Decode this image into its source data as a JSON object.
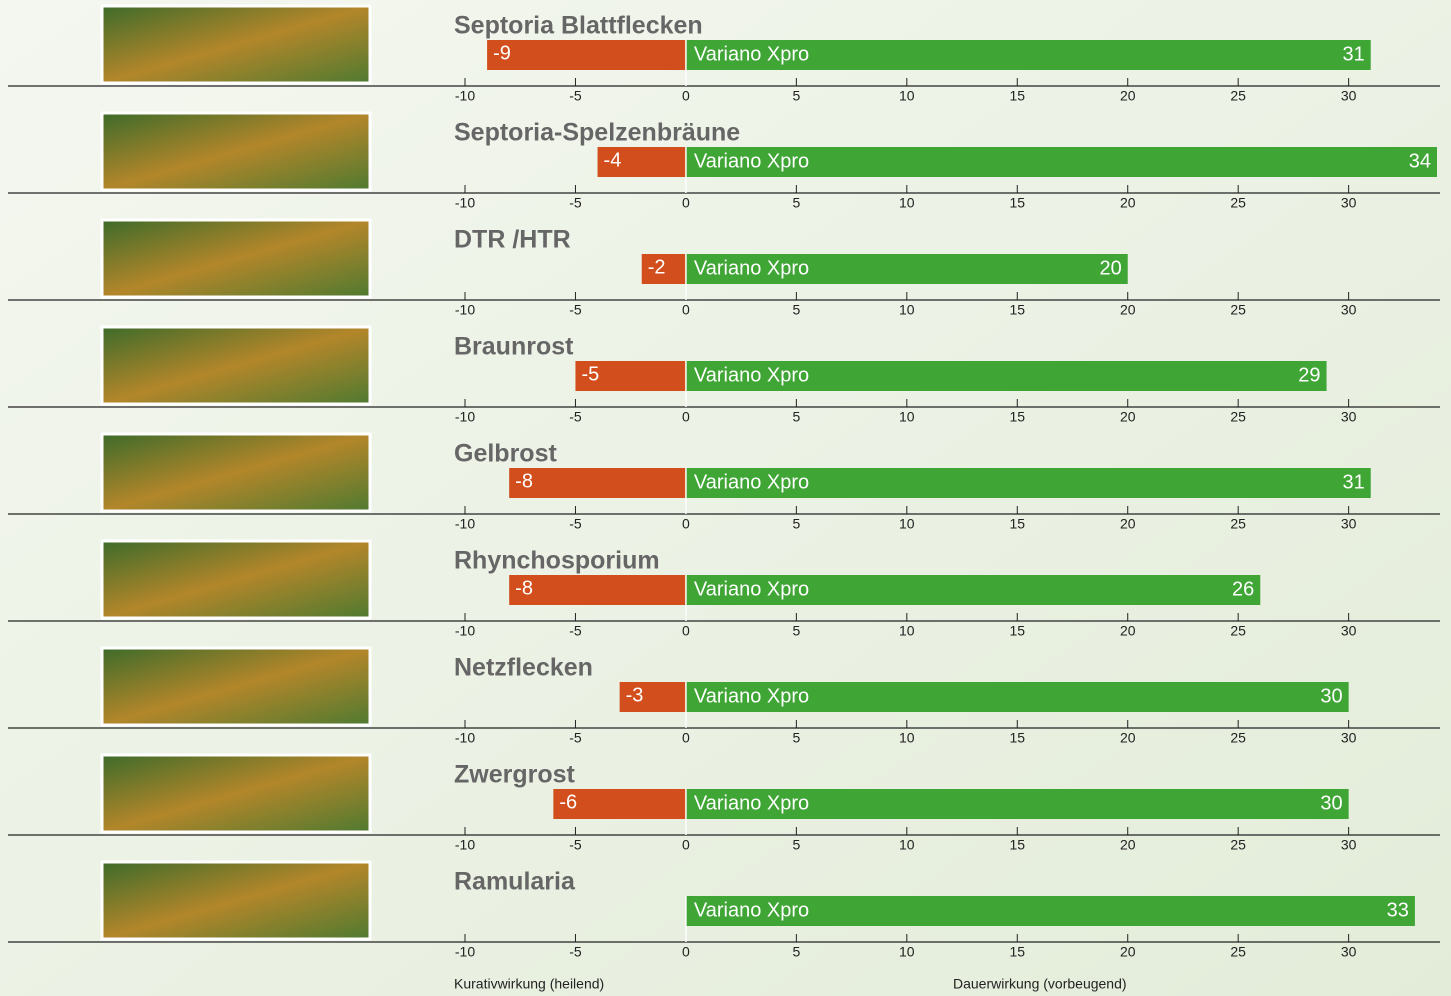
{
  "chart_data": [
    {
      "type": "diverging-bar",
      "title": "Septoria Blattflecken",
      "label": "Variano Xpro",
      "values": [
        -9,
        31
      ],
      "colors": [
        "#d24e1c",
        "#3fa535"
      ],
      "xlim": [
        -10,
        34
      ],
      "xticks": [
        -10,
        -5,
        0,
        5,
        10,
        15,
        20,
        25,
        30
      ]
    },
    {
      "type": "diverging-bar",
      "title": "Septoria-Spelzenbräune",
      "label": "Variano Xpro",
      "values": [
        -4,
        34
      ],
      "colors": [
        "#d24e1c",
        "#3fa535"
      ],
      "xlim": [
        -10,
        34
      ],
      "xticks": [
        -10,
        -5,
        0,
        5,
        10,
        15,
        20,
        25,
        30
      ]
    },
    {
      "type": "diverging-bar",
      "title": "DTR /HTR",
      "label": "Variano Xpro",
      "values": [
        -2,
        20
      ],
      "colors": [
        "#d24e1c",
        "#3fa535"
      ],
      "xlim": [
        -10,
        34
      ],
      "xticks": [
        -10,
        -5,
        0,
        5,
        10,
        15,
        20,
        25,
        30
      ]
    },
    {
      "type": "diverging-bar",
      "title": "Braunrost",
      "label": "Variano Xpro",
      "values": [
        -5,
        29
      ],
      "colors": [
        "#d24e1c",
        "#3fa535"
      ],
      "xlim": [
        -10,
        34
      ],
      "xticks": [
        -10,
        -5,
        0,
        5,
        10,
        15,
        20,
        25,
        30
      ]
    },
    {
      "type": "diverging-bar",
      "title": "Gelbrost",
      "label": "Variano Xpro",
      "values": [
        -8,
        31
      ],
      "colors": [
        "#d24e1c",
        "#3fa535"
      ],
      "xlim": [
        -10,
        34
      ],
      "xticks": [
        -10,
        -5,
        0,
        5,
        10,
        15,
        20,
        25,
        30
      ]
    },
    {
      "type": "diverging-bar",
      "title": "Rhynchosporium",
      "label": "Variano Xpro",
      "values": [
        -8,
        26
      ],
      "colors": [
        "#d24e1c",
        "#3fa535"
      ],
      "xlim": [
        -10,
        34
      ],
      "xticks": [
        -10,
        -5,
        0,
        5,
        10,
        15,
        20,
        25,
        30
      ]
    },
    {
      "type": "diverging-bar",
      "title": "Netzflecken",
      "label": "Variano Xpro",
      "values": [
        -3,
        30
      ],
      "colors": [
        "#d24e1c",
        "#3fa535"
      ],
      "xlim": [
        -10,
        34
      ],
      "xticks": [
        -10,
        -5,
        0,
        5,
        10,
        15,
        20,
        25,
        30
      ]
    },
    {
      "type": "diverging-bar",
      "title": "Zwergrost",
      "label": "Variano Xpro",
      "values": [
        -6,
        30
      ],
      "colors": [
        "#d24e1c",
        "#3fa535"
      ],
      "xlim": [
        -10,
        34
      ],
      "xticks": [
        -10,
        -5,
        0,
        5,
        10,
        15,
        20,
        25,
        30
      ]
    },
    {
      "type": "diverging-bar",
      "title": "Ramularia",
      "label": "Variano Xpro",
      "values": [
        null,
        33
      ],
      "colors": [
        "#d24e1c",
        "#3fa535"
      ],
      "xlim": [
        -10,
        34
      ],
      "xticks": [
        -10,
        -5,
        0,
        5,
        10,
        15,
        20,
        25,
        30
      ]
    }
  ],
  "axis_captions": [
    "Kurativwirkung (heilend)",
    "Dauerwirkung (vorbeugend)"
  ]
}
